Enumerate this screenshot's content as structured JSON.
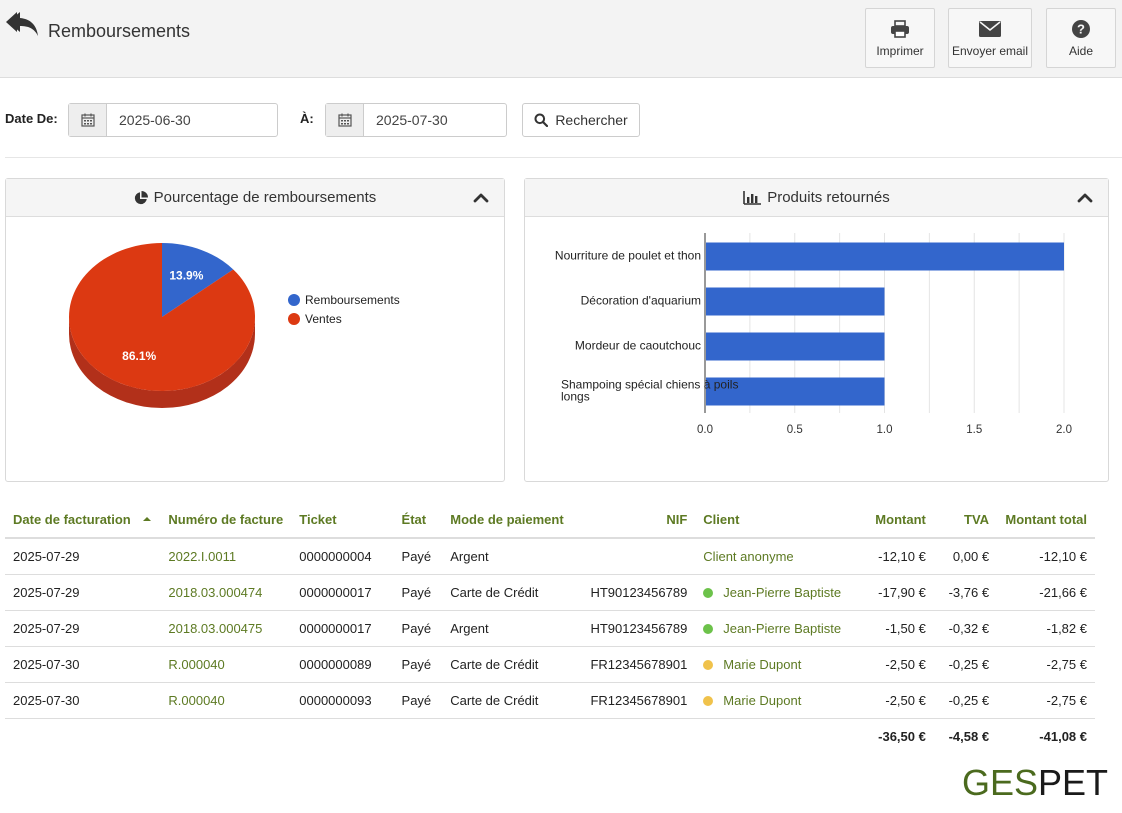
{
  "header": {
    "title": "Remboursements",
    "buttons": [
      {
        "label": "Imprimer",
        "icon": "printer-icon"
      },
      {
        "label": "Envoyer email",
        "icon": "envelope-icon"
      },
      {
        "label": "Aide",
        "icon": "question-icon"
      }
    ]
  },
  "filters": {
    "date_from_label": "Date De:",
    "date_from_value": "2025-06-30",
    "date_to_label": "À:",
    "date_to_value": "2025-07-30",
    "search_label": "Rechercher"
  },
  "pie_panel": {
    "title": "Pourcentage de remboursements",
    "chart_data": {
      "type": "pie",
      "labels": [
        "Remboursements",
        "Ventes"
      ],
      "values": [
        13.9,
        86.1
      ],
      "value_labels": [
        "13.9%",
        "86.1%"
      ],
      "colors": [
        "#3366cc",
        "#dc3912"
      ],
      "legend": "right"
    }
  },
  "bar_panel": {
    "title": "Produits retournés",
    "chart_data": {
      "type": "bar",
      "orientation": "horizontal",
      "categories": [
        "Nourriture de poulet et thon",
        "Décoration d'aquarium",
        "Mordeur de caoutchouc",
        "Shampoing spécial chiens à poils longs"
      ],
      "values": [
        2,
        1,
        1,
        1
      ],
      "xlim": [
        0,
        2
      ],
      "xticks": [
        "0.0",
        "0.5",
        "1.0",
        "1.5",
        "2.0"
      ],
      "color": "#3366cc",
      "grid": true
    }
  },
  "table": {
    "columns": [
      "Date de facturation",
      "Numéro de facture",
      "Ticket",
      "État",
      "Mode de paiement",
      "NIF",
      "Client",
      "Montant",
      "TVA",
      "Montant total"
    ],
    "rows": [
      {
        "date": "2025-07-29",
        "invoice": "2022.I.0011",
        "ticket": "0000000004",
        "state": "Payé",
        "payment": "Argent",
        "nif": "",
        "client": "Client anonyme",
        "client_dot": "",
        "amount": "-12,10 €",
        "tva": "0,00 €",
        "total": "-12,10 €"
      },
      {
        "date": "2025-07-29",
        "invoice": "2018.03.000474",
        "ticket": "0000000017",
        "state": "Payé",
        "payment": "Carte de Crédit",
        "nif": "HT90123456789",
        "client": "Jean-Pierre Baptiste",
        "client_dot": "#6cc24a",
        "amount": "-17,90 €",
        "tva": "-3,76 €",
        "total": "-21,66 €"
      },
      {
        "date": "2025-07-29",
        "invoice": "2018.03.000475",
        "ticket": "0000000017",
        "state": "Payé",
        "payment": "Argent",
        "nif": "HT90123456789",
        "client": "Jean-Pierre Baptiste",
        "client_dot": "#6cc24a",
        "amount": "-1,50 €",
        "tva": "-0,32 €",
        "total": "-1,82 €"
      },
      {
        "date": "2025-07-30",
        "invoice": "R.000040",
        "ticket": "0000000089",
        "state": "Payé",
        "payment": "Carte de Crédit",
        "nif": "FR12345678901",
        "client": "Marie Dupont",
        "client_dot": "#f0c24b",
        "amount": "-2,50 €",
        "tva": "-0,25 €",
        "total": "-2,75 €"
      },
      {
        "date": "2025-07-30",
        "invoice": "R.000040",
        "ticket": "0000000093",
        "state": "Payé",
        "payment": "Carte de Crédit",
        "nif": "FR12345678901",
        "client": "Marie Dupont",
        "client_dot": "#f0c24b",
        "amount": "-2,50 €",
        "tva": "-0,25 €",
        "total": "-2,75 €"
      }
    ],
    "totals": {
      "amount": "-36,50 €",
      "tva": "-4,58 €",
      "total": "-41,08 €"
    }
  },
  "brand": {
    "part1": "GES",
    "part2": "PET"
  },
  "colors": {
    "accent": "#5d7a23",
    "pie_blue": "#3366cc",
    "pie_red": "#dc3912"
  }
}
